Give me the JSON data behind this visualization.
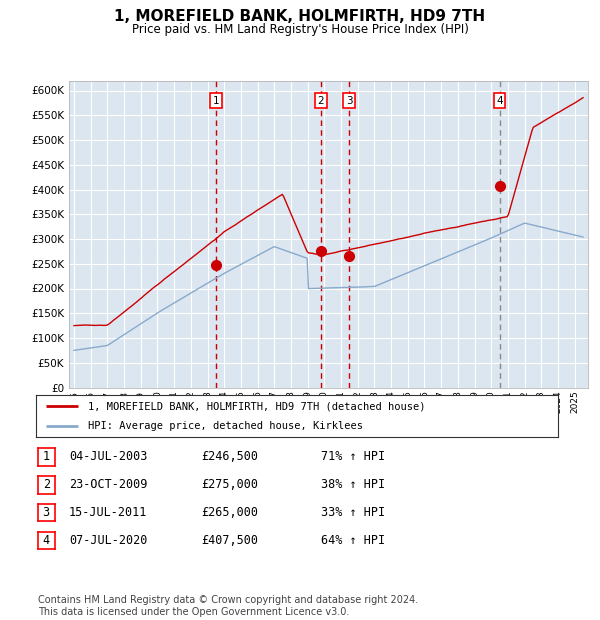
{
  "title": "1, MOREFIELD BANK, HOLMFIRTH, HD9 7TH",
  "subtitle": "Price paid vs. HM Land Registry's House Price Index (HPI)",
  "title_fontsize": 11,
  "subtitle_fontsize": 8.5,
  "plot_bg_color": "#dce6f0",
  "grid_color": "#ffffff",
  "red_line_color": "#cc0000",
  "blue_line_color": "#88aacc",
  "sale_marker_color": "#cc0000",
  "dashed_line_color_red": "#cc0000",
  "dashed_line_color_grey": "#888888",
  "ylim": [
    0,
    620000
  ],
  "yticks": [
    0,
    50000,
    100000,
    150000,
    200000,
    250000,
    300000,
    350000,
    400000,
    450000,
    500000,
    550000,
    600000
  ],
  "legend_label_red": "1, MOREFIELD BANK, HOLMFIRTH, HD9 7TH (detached house)",
  "legend_label_blue": "HPI: Average price, detached house, Kirklees",
  "sales": [
    {
      "num": 1,
      "year": 2003.5,
      "price": 246500,
      "date": "04-JUL-2003",
      "pct": "71%",
      "dashed": "red"
    },
    {
      "num": 2,
      "year": 2009.8,
      "price": 275000,
      "date": "23-OCT-2009",
      "pct": "38%",
      "dashed": "red"
    },
    {
      "num": 3,
      "year": 2011.5,
      "price": 265000,
      "date": "15-JUL-2011",
      "pct": "33%",
      "dashed": "red"
    },
    {
      "num": 4,
      "year": 2020.5,
      "price": 407500,
      "date": "07-JUL-2020",
      "pct": "64%",
      "dashed": "grey"
    }
  ],
  "footer": "Contains HM Land Registry data © Crown copyright and database right 2024.\nThis data is licensed under the Open Government Licence v3.0.",
  "footer_fontsize": 7
}
